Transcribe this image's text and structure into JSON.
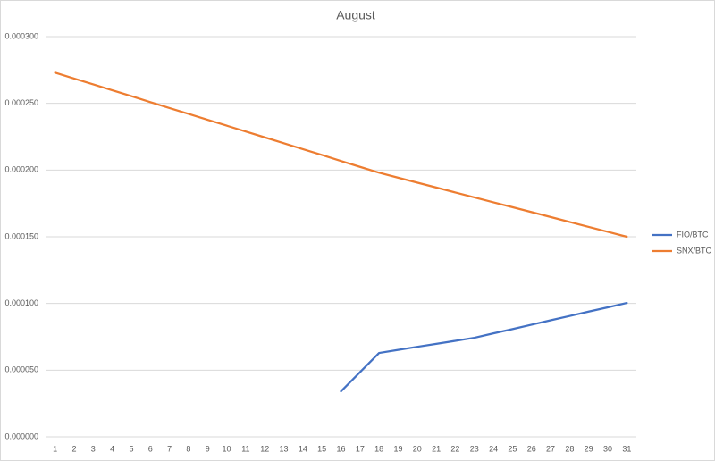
{
  "chart_data": {
    "type": "line",
    "title": "August",
    "categories": [
      "1",
      "2",
      "3",
      "4",
      "5",
      "6",
      "7",
      "8",
      "9",
      "10",
      "11",
      "12",
      "13",
      "14",
      "15",
      "16",
      "17",
      "18",
      "19",
      "20",
      "21",
      "22",
      "23",
      "24",
      "25",
      "26",
      "27",
      "28",
      "29",
      "30",
      "31"
    ],
    "series": [
      {
        "name": "FIO/BTC",
        "color": "#4472c4",
        "values": [
          null,
          null,
          null,
          null,
          null,
          null,
          null,
          null,
          null,
          null,
          null,
          null,
          null,
          null,
          null,
          3.41e-05,
          4.85e-05,
          6.29e-05,
          6.52e-05,
          6.75e-05,
          6.97e-05,
          7.2e-05,
          7.43e-05,
          7.76e-05,
          8.08e-05,
          8.41e-05,
          8.74e-05,
          9.06e-05,
          9.39e-05,
          9.71e-05,
          0.0001004
        ]
      },
      {
        "name": "SNX/BTC",
        "color": "#ed7d31",
        "values": [
          0.000273,
          0.0002686,
          0.0002642,
          0.0002598,
          0.0002554,
          0.0002509,
          0.0002465,
          0.0002421,
          0.0002377,
          0.0002333,
          0.0002289,
          0.0002245,
          0.0002201,
          0.0002157,
          0.0002113,
          0.0002068,
          0.0002024,
          0.000198,
          0.0001943,
          0.0001906,
          0.0001869,
          0.0001832,
          0.0001795,
          0.0001758,
          0.0001722,
          0.0001685,
          0.0001648,
          0.0001611,
          0.0001574,
          0.0001537,
          0.00015
        ]
      }
    ],
    "ylim": [
      0,
      0.0003
    ],
    "yticks": [
      {
        "value": 0,
        "label": "0.000000"
      },
      {
        "value": 5e-05,
        "label": "0.000050"
      },
      {
        "value": 0.0001,
        "label": "0.000100"
      },
      {
        "value": 0.00015,
        "label": "0.000150"
      },
      {
        "value": 0.0002,
        "label": "0.000200"
      },
      {
        "value": 0.00025,
        "label": "0.000250"
      },
      {
        "value": 0.0003,
        "label": "0.000300"
      }
    ],
    "grid": true,
    "legend": "right"
  }
}
